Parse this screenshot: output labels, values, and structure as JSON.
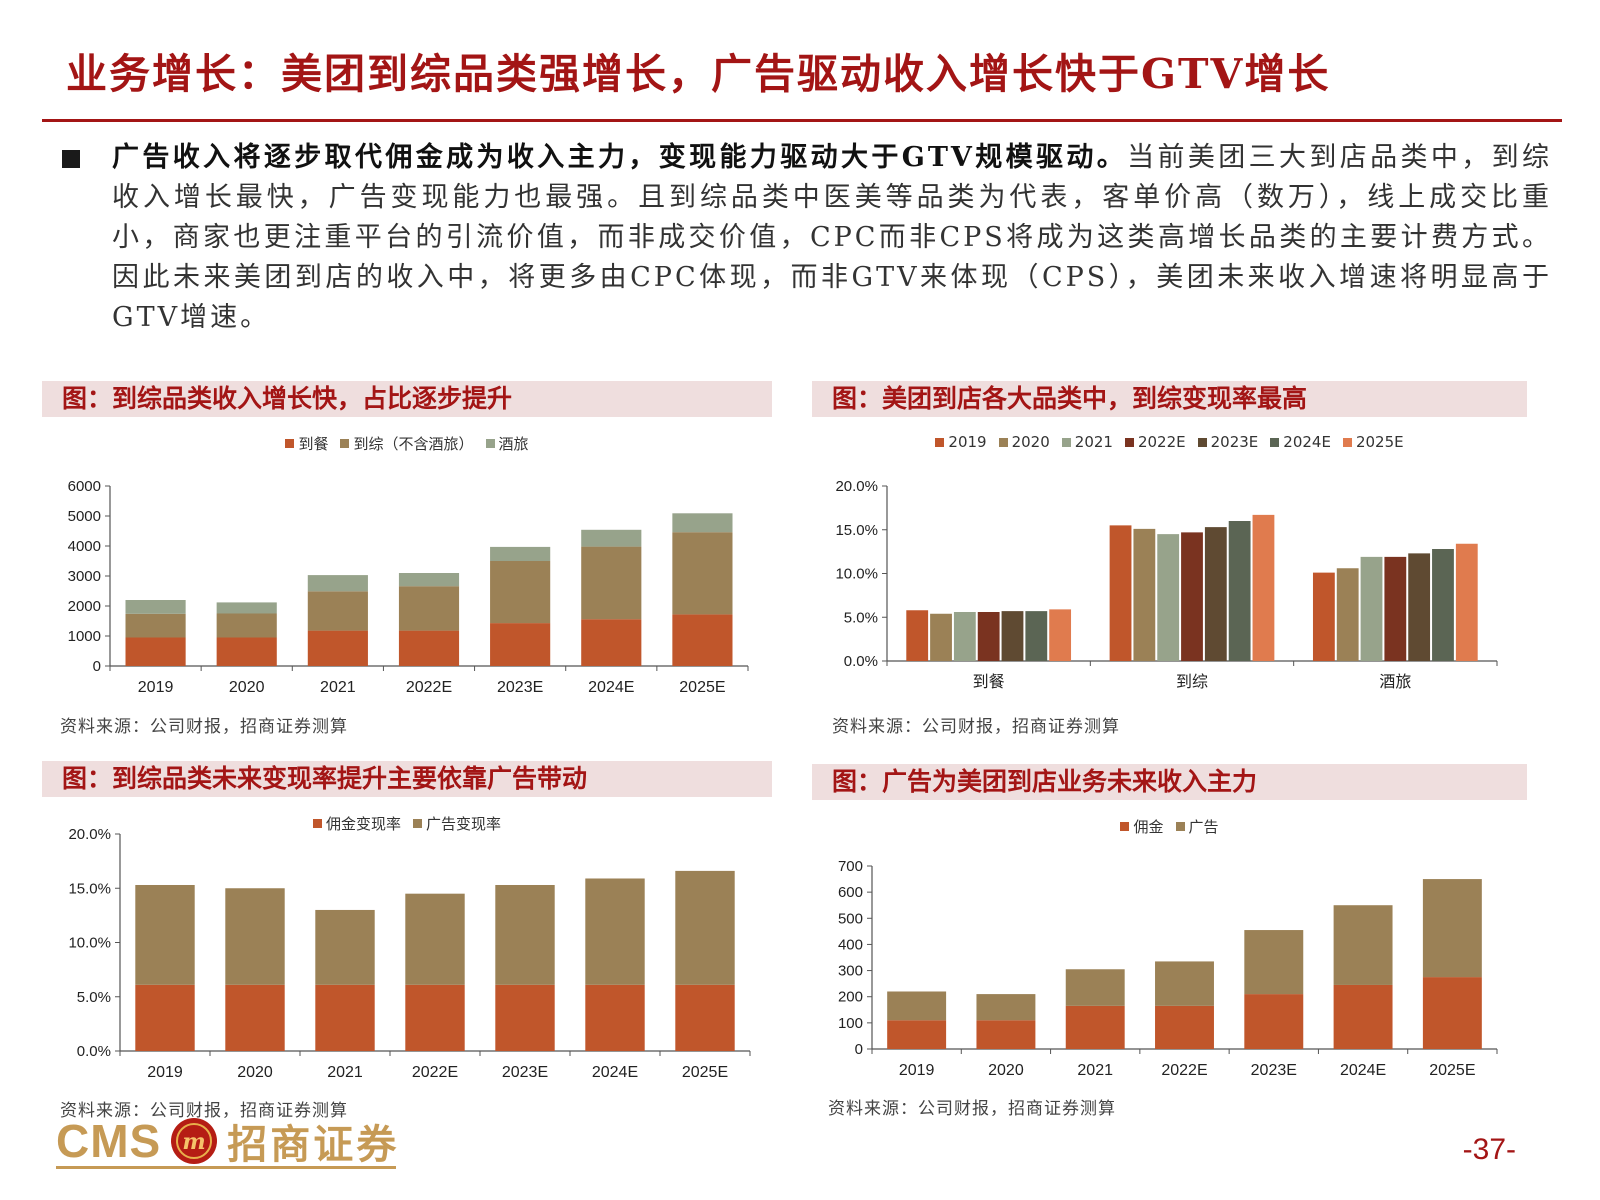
{
  "page": {
    "title": "业务增长：美团到综品类强增长，广告驱动收入增长快于GTV增长",
    "bullet_bold": "广告收入将逐步取代佣金成为收入主力，变现能力驱动大于GTV规模驱动。",
    "bullet_rest": "当前美团三大到店品类中，到综收入增长最快，广告变现能力也最强。且到综品类中医美等品类为代表，客单价高（数万），线上成交比重小，商家也更注重平台的引流价值，而非成交价值，CPC而非CPS将成为这类高增长品类的主要计费方式。因此未来美团到店的收入中，将更多由CPC体现，而非GTV来体现（CPS），美团未来收入增速将明显高于GTV增速。",
    "page_number": "-37-",
    "logo_text": "CMS",
    "logo_cn": "招商证券",
    "logo_seal_text": "m"
  },
  "panels": [
    {
      "title": "图：到综品类收入增长快，占比逐步提升",
      "source": "资料来源：公司财报，招商证券测算"
    },
    {
      "title": "图：美团到店各大品类中，到综变现率最高",
      "source": "资料来源：公司财报，招商证券测算"
    },
    {
      "title": "图：到综品类未来变现率提升主要依靠广告带动",
      "source": "资料来源：公司财报，招商证券测算"
    },
    {
      "title": "图：广告为美团到店业务未来收入主力",
      "source": "资料来源：公司财报，招商证券测算"
    }
  ],
  "chart_data": [
    {
      "type": "bar",
      "stacked": true,
      "categories": [
        "2019",
        "2020",
        "2021",
        "2022E",
        "2023E",
        "2024E",
        "2025E"
      ],
      "series": [
        {
          "name": "到餐",
          "values": [
            950,
            950,
            1180,
            1180,
            1430,
            1560,
            1720
          ],
          "color": "#c0562b"
        },
        {
          "name": "到综（不含酒旅）",
          "values": [
            790,
            800,
            1310,
            1480,
            2070,
            2420,
            2740
          ],
          "color": "#9b8156"
        },
        {
          "name": "酒旅",
          "values": [
            460,
            370,
            540,
            440,
            470,
            560,
            630
          ],
          "color": "#97a38b"
        }
      ],
      "y_ticks": [
        "6000",
        "5000",
        "4000",
        "3000",
        "2000",
        "1000",
        "0"
      ],
      "ylim": [
        0,
        6000
      ],
      "grid": false,
      "legend_position": "top"
    },
    {
      "type": "bar",
      "stacked": false,
      "categories": [
        "到餐",
        "到综",
        "酒旅"
      ],
      "series": [
        {
          "name": "2019",
          "values": [
            5.8,
            15.5,
            10.1
          ],
          "color": "#c0562b"
        },
        {
          "name": "2020",
          "values": [
            5.4,
            15.1,
            10.6
          ],
          "color": "#9b8156"
        },
        {
          "name": "2021",
          "values": [
            5.6,
            14.5,
            11.9
          ],
          "color": "#97a38b"
        },
        {
          "name": "2022E",
          "values": [
            5.6,
            14.7,
            11.9
          ],
          "color": "#7a3320"
        },
        {
          "name": "2023E",
          "values": [
            5.7,
            15.3,
            12.3
          ],
          "color": "#5f4a32"
        },
        {
          "name": "2024E",
          "values": [
            5.7,
            16.0,
            12.8
          ],
          "color": "#5b6554"
        },
        {
          "name": "2025E",
          "values": [
            5.9,
            16.7,
            13.4
          ],
          "color": "#e07b4e"
        }
      ],
      "y_ticks": [
        "20.0%",
        "15.0%",
        "10.0%",
        "5.0%",
        "0.0%"
      ],
      "ylim": [
        0,
        20
      ],
      "grid": false,
      "legend_position": "top"
    },
    {
      "type": "bar",
      "stacked": true,
      "categories": [
        "2019",
        "2020",
        "2021",
        "2022E",
        "2023E",
        "2024E",
        "2025E"
      ],
      "series": [
        {
          "name": "佣金变现率",
          "values": [
            6.1,
            6.1,
            6.1,
            6.1,
            6.1,
            6.1,
            6.1
          ],
          "color": "#c0562b"
        },
        {
          "name": "广告变现率",
          "values": [
            9.2,
            8.9,
            6.9,
            8.4,
            9.2,
            9.8,
            10.5
          ],
          "color": "#9b8156"
        }
      ],
      "y_ticks": [
        "20.0%",
        "15.0%",
        "10.0%",
        "5.0%",
        "0.0%"
      ],
      "ylim": [
        0,
        20
      ],
      "grid": false,
      "legend_position": "top"
    },
    {
      "type": "bar",
      "stacked": true,
      "categories": [
        "2019",
        "2020",
        "2021",
        "2022E",
        "2023E",
        "2024E",
        "2025E"
      ],
      "series": [
        {
          "name": "佣金",
          "values": [
            110,
            110,
            165,
            165,
            210,
            245,
            275
          ],
          "color": "#c0562b"
        },
        {
          "name": "广告",
          "values": [
            110,
            100,
            140,
            170,
            245,
            305,
            375
          ],
          "color": "#9b8156"
        }
      ],
      "y_ticks": [
        "700",
        "600",
        "500",
        "400",
        "300",
        "200",
        "100",
        "0"
      ],
      "ylim": [
        0,
        700
      ],
      "grid": false,
      "legend_position": "top"
    }
  ]
}
